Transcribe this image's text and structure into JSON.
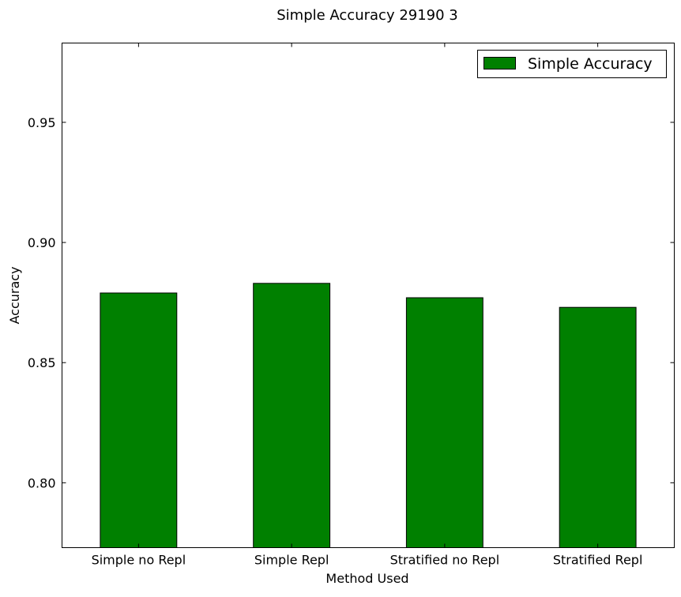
{
  "chart_data": {
    "type": "bar",
    "title": "Simple Accuracy 29190 3",
    "xlabel": "Method Used",
    "ylabel": "Accuracy",
    "categories": [
      "Simple no Repl",
      "Simple Repl",
      "Stratified no Repl",
      "Stratified Repl"
    ],
    "series": [
      {
        "name": "Simple Accuracy",
        "values": [
          0.879,
          0.883,
          0.877,
          0.873
        ],
        "color": "#008000"
      }
    ],
    "ylim": [
      0.773,
      0.983
    ],
    "yticks": [
      0.8,
      0.85,
      0.9,
      0.95
    ],
    "ytick_labels": [
      "0.80",
      "0.85",
      "0.90",
      "0.95"
    ],
    "grid": false,
    "legend_position": "top-right"
  }
}
